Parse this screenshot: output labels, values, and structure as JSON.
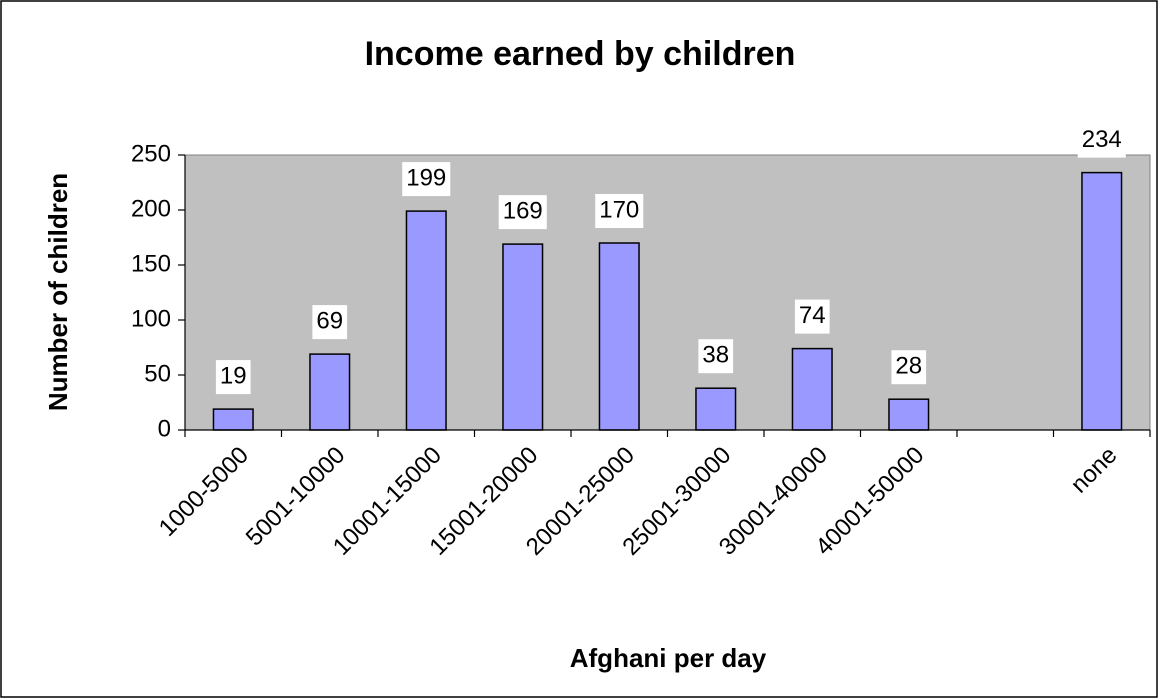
{
  "chart_data": {
    "type": "bar",
    "title": "Income earned by children",
    "x_label": "Afghani per day",
    "y_label": "Number of children",
    "categories": [
      "1000-5000",
      "5001-10000",
      "10001-15000",
      "15001-20000",
      "20001-25000",
      "25001-30000",
      "30001-40000",
      "40001-50000",
      null,
      "none"
    ],
    "values": [
      19,
      69,
      199,
      169,
      170,
      38,
      74,
      28,
      null,
      234
    ],
    "color": "#9999ff",
    "plot_background": "#c0c0c0",
    "ylim": [
      0,
      250
    ],
    "yticks": [
      0,
      50,
      100,
      150,
      200,
      250
    ],
    "grid": false
  }
}
